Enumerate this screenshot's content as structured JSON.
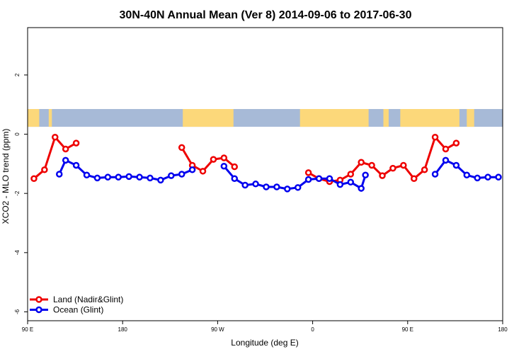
{
  "chart_data": {
    "type": "line",
    "title": "30N-40N Annual Mean (Ver 8)   2014-09-06 to 2017-06-30",
    "xlabel": "Longitude (deg E)",
    "ylabel": "XCO2 - MLO trend (ppm)",
    "xlim": [
      90,
      540
    ],
    "ylim": [
      -6.3,
      3.6
    ],
    "x_ticks": [
      {
        "value": 90,
        "label": "90 E"
      },
      {
        "value": 180,
        "label": "180"
      },
      {
        "value": 270,
        "label": "90 W"
      },
      {
        "value": 360,
        "label": "0"
      },
      {
        "value": 450,
        "label": "90 E"
      },
      {
        "value": 540,
        "label": "180"
      }
    ],
    "y_ticks": [
      {
        "value": 2,
        "label": "2"
      },
      {
        "value": 0,
        "label": "0"
      },
      {
        "value": -2,
        "label": "-2"
      },
      {
        "value": -4,
        "label": "-4"
      },
      {
        "value": -6,
        "label": "-6"
      }
    ],
    "legend_position": "bottom-left",
    "map_strip": {
      "y_range": [
        0.25,
        0.85
      ],
      "ocean_color": "#a7bad7",
      "land_color": "#fcd87a",
      "land_bands": [
        [
          90,
          101
        ],
        [
          110,
          113
        ],
        [
          237,
          285
        ],
        [
          348,
          413
        ],
        [
          427,
          432
        ],
        [
          443,
          499
        ],
        [
          506,
          513
        ]
      ]
    },
    "series": [
      {
        "name": "Land (Nadir&Glint)",
        "color": "#ee0000",
        "segments": [
          [
            [
              96,
              -1.5
            ],
            [
              106,
              -1.2
            ],
            [
              116,
              -0.1
            ],
            [
              126,
              -0.5
            ],
            [
              136,
              -0.3
            ]
          ],
          [
            [
              236,
              -0.45
            ],
            [
              246,
              -1.05
            ],
            [
              256,
              -1.25
            ],
            [
              266,
              -0.85
            ],
            [
              276,
              -0.8
            ],
            [
              286,
              -1.1
            ]
          ],
          [
            [
              356,
              -1.3
            ],
            [
              366,
              -1.5
            ],
            [
              376,
              -1.6
            ],
            [
              386,
              -1.55
            ],
            [
              396,
              -1.35
            ],
            [
              406,
              -0.95
            ],
            [
              416,
              -1.05
            ],
            [
              426,
              -1.4
            ],
            [
              436,
              -1.15
            ],
            [
              446,
              -1.05
            ],
            [
              456,
              -1.5
            ],
            [
              466,
              -1.2
            ],
            [
              476,
              -0.1
            ],
            [
              486,
              -0.5
            ],
            [
              496,
              -0.3
            ]
          ]
        ]
      },
      {
        "name": "Ocean (Glint)",
        "color": "#0000ee",
        "segments": [
          [
            [
              120,
              -1.35
            ],
            [
              126,
              -0.88
            ],
            [
              136,
              -1.05
            ],
            [
              146,
              -1.38
            ],
            [
              156,
              -1.48
            ],
            [
              166,
              -1.45
            ],
            [
              176,
              -1.45
            ],
            [
              186,
              -1.43
            ],
            [
              196,
              -1.45
            ],
            [
              206,
              -1.48
            ],
            [
              216,
              -1.55
            ],
            [
              226,
              -1.4
            ],
            [
              236,
              -1.35
            ],
            [
              246,
              -1.2
            ]
          ],
          [
            [
              276,
              -1.08
            ],
            [
              286,
              -1.5
            ],
            [
              296,
              -1.72
            ],
            [
              306,
              -1.68
            ],
            [
              316,
              -1.78
            ],
            [
              326,
              -1.78
            ],
            [
              336,
              -1.85
            ],
            [
              346,
              -1.8
            ],
            [
              356,
              -1.53
            ],
            [
              366,
              -1.5
            ],
            [
              376,
              -1.5
            ],
            [
              386,
              -1.7
            ],
            [
              396,
              -1.62
            ],
            [
              406,
              -1.83
            ],
            [
              410,
              -1.38
            ]
          ],
          [
            [
              476,
              -1.35
            ],
            [
              486,
              -0.88
            ],
            [
              496,
              -1.05
            ],
            [
              506,
              -1.38
            ],
            [
              516,
              -1.48
            ],
            [
              526,
              -1.45
            ],
            [
              536,
              -1.45
            ]
          ]
        ]
      }
    ]
  }
}
